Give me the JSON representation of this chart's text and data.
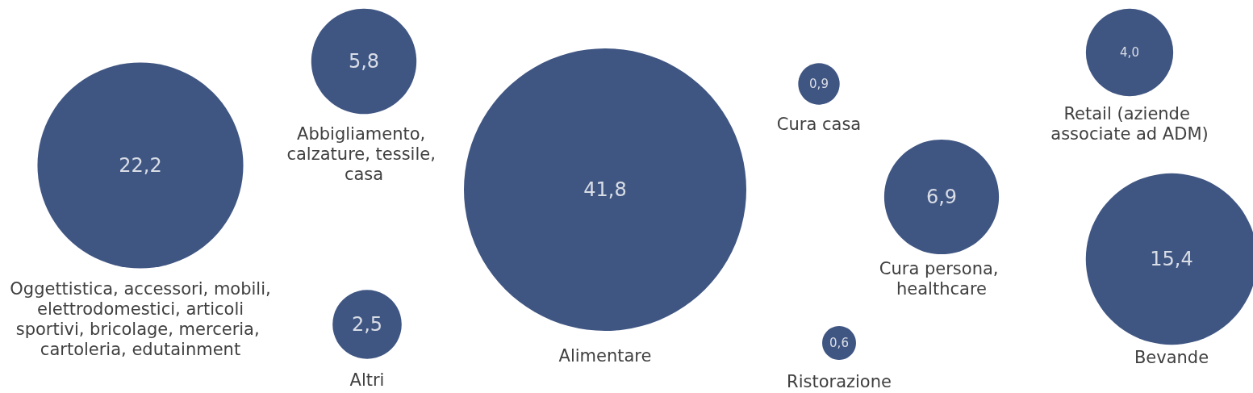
{
  "chart_data": {
    "type": "other",
    "categories": [
      "Oggettistica, accessori, mobili, elettrodomestici, articoli sportivi, bricolage, merceria, cartoleria, edutainment",
      "Abbigliamento, calzature, tessile, casa",
      "Altri",
      "Alimentare",
      "Cura casa",
      "Ristorazione",
      "Cura persona, healthcare",
      "Retail (aziende associate ad ADM)",
      "Bevande"
    ],
    "values": [
      22.2,
      5.8,
      2.5,
      41.8,
      0.9,
      0.6,
      6.9,
      4.0,
      15.4
    ],
    "value_labels": [
      "22,2",
      "5,8",
      "2,5",
      "41,8",
      "0,9",
      "0,6",
      "6,9",
      "4,0",
      "15,4"
    ],
    "colors": [
      "#0f2a63",
      "#0f2a63",
      "#0f2a63",
      "#0f2a63",
      "#0f2a63",
      "#0f2a63",
      "#0f2a63",
      "#0f2a63",
      "#0f2a63"
    ]
  }
}
